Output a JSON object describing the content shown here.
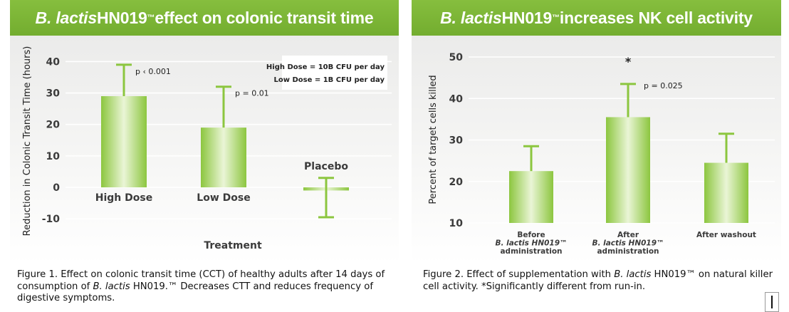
{
  "panel1": {
    "title_pre": "B. lactis",
    "title_post": " HN019",
    "title_tm": "™",
    "title_end": " effect on colonic transit time",
    "caption_pre": "Figure 1.  Effect on colonic transit time (CCT) of healthy adults after 14 days of consumption of ",
    "caption_italic": "B. lactis",
    "caption_post": " HN019.™ Decreases CTT and reduces frequency of digestive symptoms."
  },
  "panel2": {
    "title_pre": "B. lactis",
    "title_post": " HN019",
    "title_tm": "™",
    "title_end": " increases NK cell activity",
    "caption_pre": "Figure 2.  Effect of supplementation with ",
    "caption_italic": "B. lactis",
    "caption_post": " HN019™ on natural killer cell activity. *Significantly different from run-in."
  },
  "colors": {
    "bar": "#8cc63f",
    "bar_light": "#eaf5d6",
    "title_bar": "#7cb436",
    "text": "#3b3b3b"
  },
  "chart_data": [
    {
      "type": "bar",
      "ylabel": "Reduction in Colonic Transit Time (hours)",
      "xlabel": "Treatment",
      "ylim": [
        -12,
        41
      ],
      "yticks": [
        "40",
        "30",
        "20",
        "10",
        "0",
        "-10"
      ],
      "ytick_values": [
        40,
        30,
        20,
        10,
        0,
        -10
      ],
      "categories": [
        "High Dose",
        "Low Dose",
        "Placebo"
      ],
      "values": [
        29,
        19,
        -1
      ],
      "error_upper": [
        39,
        32,
        3
      ],
      "error_lower": [
        29,
        19,
        -9.5
      ],
      "annotations": [
        "p ‹ 0.001",
        "p = 0.01",
        ""
      ],
      "legend_lines": [
        "High Dose = 10B CFU per day",
        "Low Dose = 1B CFU per day"
      ],
      "legend_position": "top-right",
      "grid": true
    },
    {
      "type": "bar",
      "ylabel": "Percent of target cells killed",
      "ylim": [
        10,
        50
      ],
      "yticks": [
        "50",
        "40",
        "30",
        "20",
        "10"
      ],
      "ytick_values": [
        50,
        40,
        30,
        20,
        10
      ],
      "categories": [
        [
          "Before",
          "B. lactis HN019™",
          "administration"
        ],
        [
          "After",
          "B. lactis HN019™",
          "administration"
        ],
        [
          "After washout"
        ]
      ],
      "values": [
        22.5,
        35.5,
        24.5
      ],
      "error_upper": [
        28.5,
        43.5,
        31.5
      ],
      "annotations": [
        "",
        "p = 0.025",
        ""
      ],
      "significance_marker": "*",
      "grid": true
    }
  ]
}
